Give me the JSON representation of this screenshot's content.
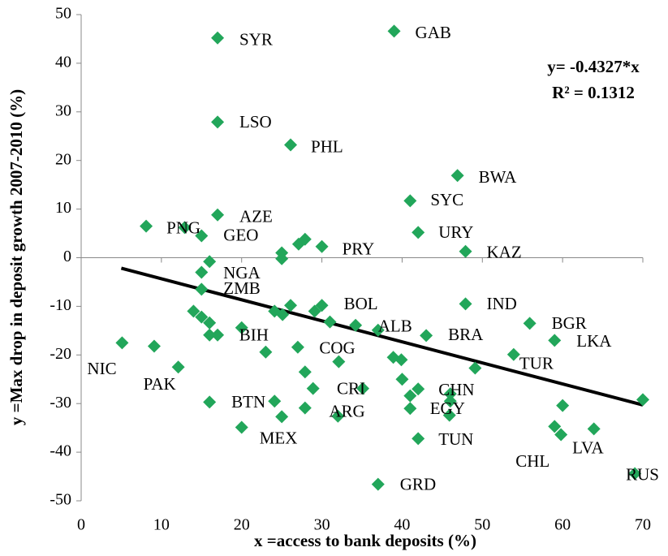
{
  "chart_data": {
    "type": "scatter",
    "x_label": "x =access to bank deposits (%)",
    "y_label": "y =Max drop in deposit growth 2007-2010 (%)",
    "annotations": [
      "y= -0.4327*x",
      "R² = 0.1312"
    ],
    "color": "#22a65a",
    "xlim": [
      0,
      70
    ],
    "xticks": [
      0,
      10,
      20,
      30,
      40,
      50,
      60,
      70
    ],
    "ylim": [
      -50,
      50
    ],
    "yticks": [
      -50,
      -40,
      -30,
      -20,
      -10,
      0,
      10,
      20,
      30,
      40,
      50
    ],
    "trendline": {
      "slope": -0.4327,
      "x": [
        5,
        70
      ],
      "color": "#000000"
    },
    "x": [
      17,
      39,
      17,
      26.1,
      46.9,
      41,
      42,
      47.9,
      17,
      8.1,
      12.9,
      15,
      30,
      25,
      25,
      27.1,
      27.9,
      16,
      15,
      15,
      14,
      15,
      16,
      16,
      17,
      20,
      24.1,
      25.1,
      26.1,
      29.1,
      30,
      31,
      34.2,
      37,
      43,
      47.9,
      55.9,
      59,
      53.9,
      5.1,
      9.1,
      12.1,
      23,
      27,
      32.1,
      38.9,
      39.9,
      49.1,
      27.9,
      40,
      35.1,
      28.9,
      42,
      41,
      46,
      41,
      46,
      45.9,
      32,
      27.9,
      16,
      24.1,
      25,
      60,
      70,
      20,
      42,
      59,
      59.8,
      63.9,
      37,
      69
    ],
    "y": [
      45.2,
      46.6,
      27.9,
      23.2,
      16.9,
      11.7,
      5.2,
      1.3,
      8.8,
      6.5,
      6.2,
      4.5,
      2.3,
      1,
      -0.2,
      2.8,
      3.8,
      -0.8,
      -3,
      -6.5,
      -11,
      -12.2,
      -13.4,
      -15.9,
      -15.9,
      -14.4,
      -11,
      -11.7,
      -9.8,
      -11,
      -9.8,
      -13.2,
      -13.9,
      -14.9,
      -16,
      -9.5,
      -13.5,
      -17,
      -19.9,
      -17.5,
      -18.2,
      -22.5,
      -19.4,
      -18.4,
      -21.4,
      -20.5,
      -21,
      -22.7,
      -23.5,
      -25,
      -26.9,
      -26.9,
      -27,
      -28.4,
      -28,
      -31,
      -29.5,
      -32.4,
      -32.6,
      -30.9,
      -29.7,
      -29.5,
      -32.7,
      -30.4,
      -29.2,
      -34.9,
      -37.2,
      -34.7,
      -36.4,
      -35.2,
      -46.6,
      -44.4
    ],
    "labels": [
      "SYR",
      "GAB",
      "LSO",
      "PHL",
      "BWA",
      "SYC",
      "URY",
      "KAZ",
      "AZE",
      "PNG",
      null,
      "GEO",
      "PRY",
      null,
      null,
      null,
      null,
      "NGA",
      null,
      "ZMB",
      null,
      null,
      null,
      null,
      null,
      "BIH",
      null,
      null,
      null,
      null,
      "BOL",
      null,
      null,
      "ALB",
      "BRA",
      "IND",
      "BGR",
      "LKA",
      "TUR",
      "NIC",
      null,
      "PAK",
      null,
      null,
      "COG",
      null,
      null,
      null,
      null,
      null,
      "CRI",
      null,
      "CHN",
      null,
      null,
      null,
      "EGY",
      null,
      "ARG",
      null,
      "BTN",
      null,
      null,
      null,
      null,
      "MEX",
      "TUN",
      "CHL",
      "LVA",
      null,
      "GRD",
      "RUS"
    ]
  }
}
